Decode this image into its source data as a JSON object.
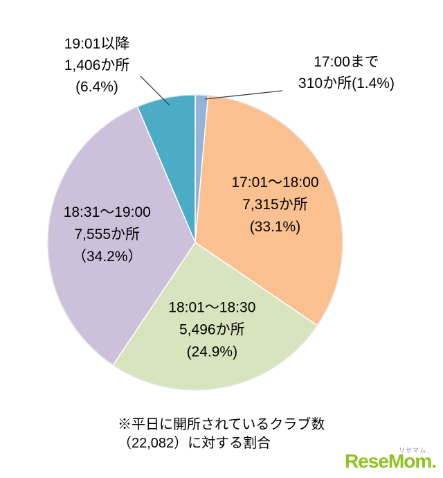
{
  "chart_data": {
    "type": "pie",
    "title": "",
    "total_clubs": "22,082",
    "slices": [
      {
        "label": "17:00まで",
        "count": 310,
        "count_label": "310か所",
        "pct": 1.4,
        "color": "#95B3D7",
        "placement": "outside",
        "label_lines": [
          "17:00まで",
          "310か所(1.4%)"
        ]
      },
      {
        "label": "17:01〜18:00",
        "count": 7315,
        "count_label": "7,315か所",
        "pct": 33.1,
        "color": "#FAC090",
        "placement": "inside",
        "label_lines": [
          "17:01〜18:00",
          "7,315か所",
          "(33.1%)"
        ]
      },
      {
        "label": "18:01〜18:30",
        "count": 5496,
        "count_label": "5,496か所",
        "pct": 24.9,
        "color": "#D7E4BD",
        "placement": "inside",
        "label_lines": [
          "18:01〜18:30",
          "5,496か所",
          "(24.9%)"
        ]
      },
      {
        "label": "18:31〜19:00",
        "count": 7555,
        "count_label": "7,555か所",
        "pct": 34.2,
        "color": "#CCC0DA",
        "placement": "inside",
        "label_lines": [
          "18:31〜19:00",
          "7,555か所",
          "（34.2%）"
        ]
      },
      {
        "label": "19:01以降",
        "count": 1406,
        "count_label": "1,406か所",
        "pct": 6.4,
        "color": "#4BACC6",
        "placement": "outside",
        "label_lines": [
          "19:01以降",
          "1,406か所",
          "(6.4%)"
        ]
      }
    ],
    "layout": {
      "center": [
        282,
        350
      ],
      "radius": 213,
      "start_angle": -90,
      "direction": "clockwise",
      "label_radius_factor": 0.6,
      "label_line_height": 32,
      "slice_stroke": "#ffffff",
      "outline_color": "#d9d9d9",
      "leader_color": "#404040"
    },
    "leader_lines": [
      {
        "points": [
          [
            203,
            110
          ],
          [
            245,
            152
          ]
        ]
      },
      {
        "points": [
          [
            408,
            131
          ],
          [
            296,
            143
          ]
        ]
      }
    ],
    "legend": "none",
    "grid": "off"
  },
  "footnote": {
    "line1": "※平日に開所されているクラブ数",
    "line2": "（22,082）に対する割合"
  },
  "watermark": {
    "text": "ReseMom.",
    "ruby": "リセマム",
    "color": "#8dc21f"
  }
}
